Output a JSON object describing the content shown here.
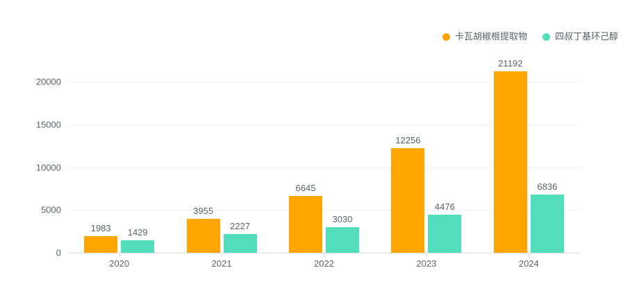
{
  "chart_data": {
    "type": "bar",
    "categories": [
      "2020",
      "2021",
      "2022",
      "2023",
      "2024"
    ],
    "series": [
      {
        "name": "卡瓦胡椒根提取物",
        "color": "#FFA502",
        "values": [
          1983,
          3955,
          6645,
          12256,
          21192
        ]
      },
      {
        "name": "四叔丁基环己醇",
        "color": "#52DEBC",
        "values": [
          1429,
          2227,
          3030,
          4476,
          6836
        ]
      }
    ],
    "title": "",
    "xlabel": "",
    "ylabel": "",
    "y_ticks": [
      0,
      5000,
      10000,
      15000,
      20000
    ],
    "ylim": [
      0,
      21900
    ],
    "grid": true,
    "legend_position": "top-right",
    "value_labels": true
  }
}
